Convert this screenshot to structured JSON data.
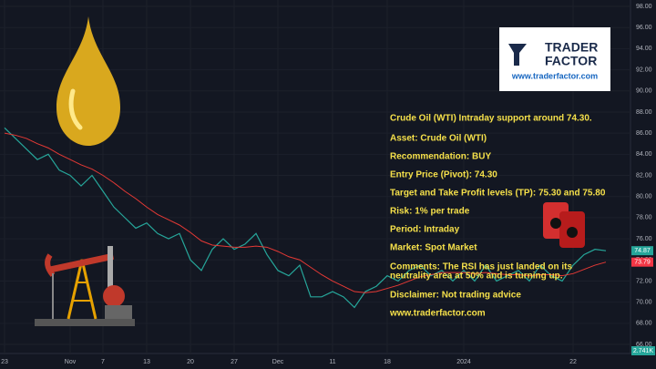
{
  "chart_data": {
    "type": "line",
    "categories": [
      "23",
      null,
      null,
      null,
      null,
      null,
      "Nov",
      null,
      null,
      "7",
      null,
      null,
      null,
      "13",
      null,
      null,
      null,
      "20",
      null,
      null,
      null,
      "27",
      null,
      null,
      null,
      "Dec",
      null,
      null,
      null,
      null,
      "11",
      null,
      null,
      null,
      null,
      "18",
      null,
      null,
      null,
      null,
      null,
      null,
      "2024",
      null,
      null,
      null,
      null,
      null,
      null,
      null,
      null,
      null,
      "22",
      null,
      null,
      null
    ],
    "series": [
      {
        "color": "#26a69a",
        "values": [
          86.5,
          85.5,
          84.5,
          83.5,
          84,
          82.5,
          82,
          81,
          82,
          80.5,
          79,
          78,
          77,
          77.5,
          76.5,
          76,
          76.5,
          74,
          73,
          75,
          76,
          75,
          75.5,
          76.5,
          74.5,
          73,
          72.5,
          73.5,
          70.5,
          70.5,
          71,
          70.5,
          69.5,
          71,
          71.5,
          72.5,
          72,
          73,
          73.5,
          72.5,
          73,
          72,
          73,
          72,
          73.5,
          72,
          72.5,
          73,
          72,
          73.5,
          72.5,
          72,
          73.5,
          74.5,
          75,
          74.87
        ]
      },
      {
        "color": "#e53935",
        "values": [
          86,
          85.8,
          85.5,
          85,
          84.6,
          84,
          83.5,
          83,
          82.6,
          82,
          81.3,
          80.5,
          79.8,
          79,
          78.3,
          77.8,
          77.3,
          76.6,
          75.8,
          75.4,
          75.3,
          75.2,
          75.2,
          75.3,
          75.2,
          74.8,
          74.3,
          74,
          73.3,
          72.6,
          72,
          71.5,
          71,
          70.9,
          71,
          71.3,
          71.6,
          72,
          72.4,
          72.6,
          72.8,
          72.8,
          72.8,
          72.7,
          72.8,
          72.7,
          72.6,
          72.6,
          72.5,
          72.6,
          72.6,
          72.5,
          72.7,
          73.1,
          73.5,
          73.79
        ]
      }
    ],
    "ylim": [
      66,
      98
    ],
    "yticks": [
      {
        "value": 66,
        "label": "66.00"
      },
      {
        "value": 68,
        "label": "68.00"
      },
      {
        "value": 70,
        "label": "70.00"
      },
      {
        "value": 72,
        "label": "72.00"
      },
      {
        "value": 74,
        "label": "74.00"
      },
      {
        "value": 76,
        "label": "76.00"
      },
      {
        "value": 78,
        "label": "78.00"
      },
      {
        "value": 80,
        "label": "80.00"
      },
      {
        "value": 82,
        "label": "82.00"
      },
      {
        "value": 84,
        "label": "84.00"
      },
      {
        "value": 86,
        "label": "86.00"
      },
      {
        "value": 88,
        "label": "88.00"
      },
      {
        "value": 90,
        "label": "90.00"
      },
      {
        "value": 92,
        "label": "92.00"
      },
      {
        "value": 94,
        "label": "94.00"
      },
      {
        "value": 96,
        "label": "96.00"
      },
      {
        "value": 98,
        "label": "98.00"
      }
    ],
    "price_badges": [
      {
        "value": 74.87,
        "color": "#26a69a"
      },
      {
        "value": 73.79,
        "color": "#f23645"
      }
    ],
    "volume_label": "2.741K",
    "notes": [
      "Crude Oil (WTI) Intraday support around 74.30.",
      "Asset: Crude Oil (WTI)",
      "Recommendation: BUY",
      "Entry Price (Pivot): 74.30",
      "Target and Take Profit levels (TP):  75.30 and 75.80",
      "Risk:  1% per trade",
      "Period: Intraday",
      "Market: Spot Market",
      "Comments: The RSI has just landed on its",
      "neutrality area at 50% and is turning up.",
      "Disclaimer: Not trading advice",
      "www.traderfactor.com"
    ],
    "logo": {
      "line1": "TRADER",
      "line2": "FACTOR",
      "url": "www.traderfactor.com"
    }
  }
}
